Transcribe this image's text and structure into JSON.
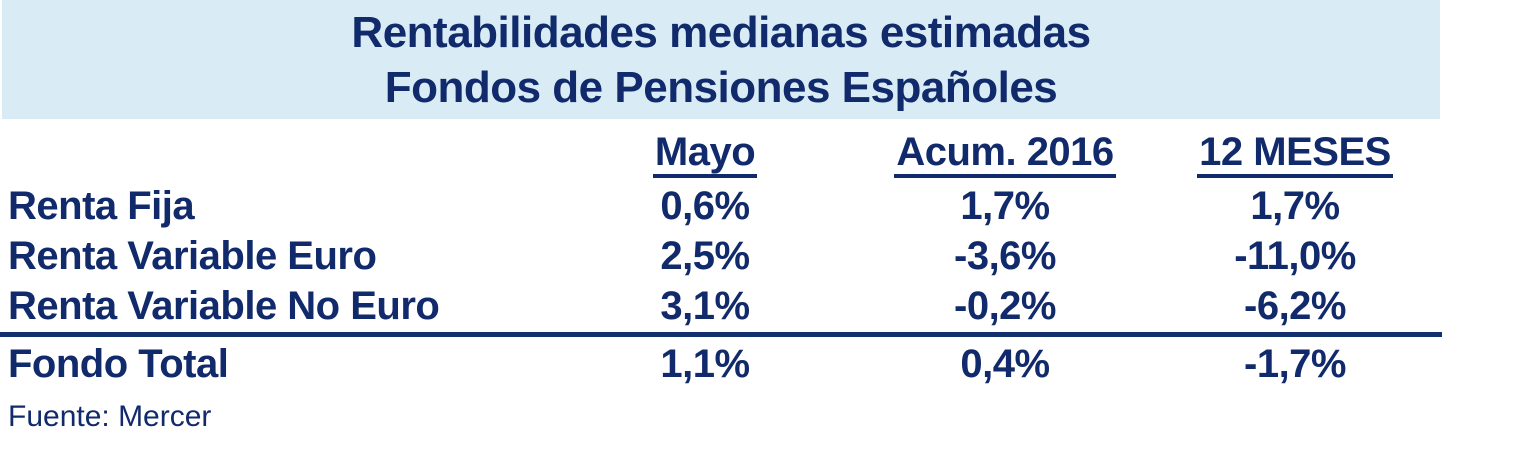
{
  "title": {
    "line1": "Rentabilidades medianas estimadas",
    "line2": "Fondos de Pensiones Españoles"
  },
  "table": {
    "columns": [
      "Mayo",
      "Acum. 2016",
      "12 MESES"
    ],
    "rows": [
      {
        "label": "Renta Fija",
        "mayo": "0,6%",
        "acum_2016": "1,7%",
        "twelve_months": "1,7%"
      },
      {
        "label": "Renta Variable Euro",
        "mayo": "2,5%",
        "acum_2016": "-3,6%",
        "twelve_months": "-11,0%"
      },
      {
        "label": "Renta Variable No Euro",
        "mayo": "3,1%",
        "acum_2016": "-0,2%",
        "twelve_months": "-6,2%"
      }
    ],
    "total_row": {
      "label": "Fondo Total",
      "mayo": "1,1%",
      "acum_2016": "0,4%",
      "twelve_months": "-1,7%"
    }
  },
  "source": "Fuente: Mercer",
  "colors": {
    "band_background": "#d9ecf5",
    "text_navy": "#112a6b",
    "divider_navy": "#12306b"
  },
  "chart_data": {
    "type": "table",
    "title": "Rentabilidades medianas estimadas Fondos de Pensiones Españoles",
    "columns": [
      "Mayo",
      "Acum. 2016",
      "12 MESES"
    ],
    "unit": "%",
    "decimal_separator": ",",
    "rows": [
      {
        "label": "Renta Fija",
        "values": [
          0.6,
          1.7,
          1.7
        ]
      },
      {
        "label": "Renta Variable Euro",
        "values": [
          2.5,
          -3.6,
          -11.0
        ]
      },
      {
        "label": "Renta Variable No Euro",
        "values": [
          3.1,
          -0.2,
          -6.2
        ]
      },
      {
        "label": "Fondo Total",
        "values": [
          1.1,
          0.4,
          -1.7
        ]
      }
    ],
    "source": "Fuente: Mercer"
  }
}
